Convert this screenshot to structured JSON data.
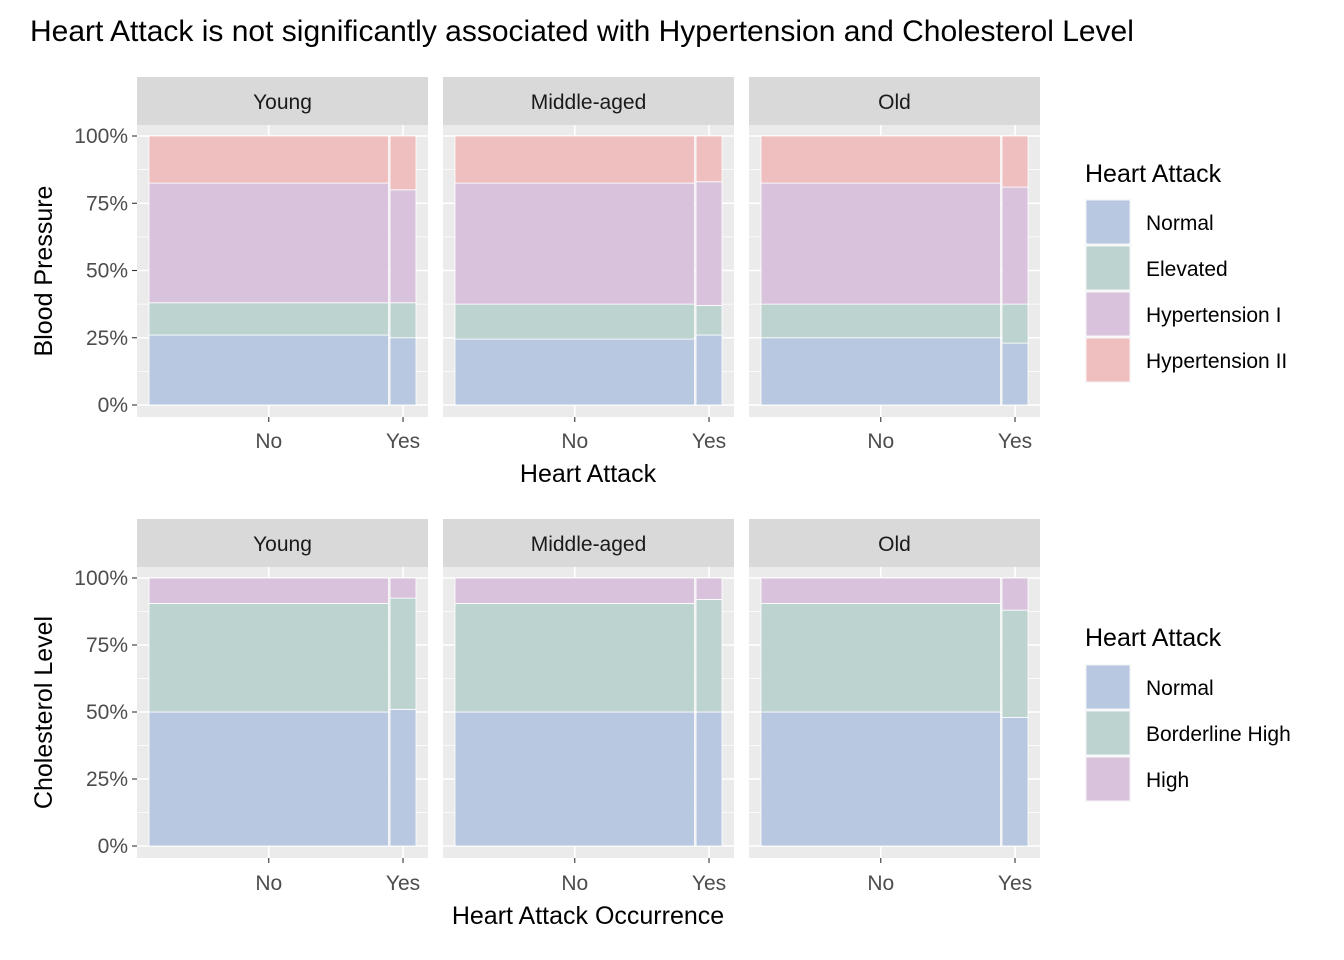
{
  "title": "Heart Attack is not significantly associated with Hypertension and Cholesterol Level",
  "chart_data": [
    {
      "type": "mosaic",
      "facets": [
        "Young",
        "Middle-aged",
        "Old"
      ],
      "x_categories": [
        "No",
        "Yes"
      ],
      "x_widths": [
        0.9,
        0.1
      ],
      "xlabel": "Heart Attack",
      "ylabel": "Blood Pressure",
      "y_ticks": [
        "0%",
        "25%",
        "50%",
        "75%",
        "100%"
      ],
      "ylim": [
        0,
        1
      ],
      "legend": {
        "title": "Heart Attack",
        "position": "right",
        "entries": [
          {
            "name": "Normal",
            "color": "#b7c8e0"
          },
          {
            "name": "Elevated",
            "color": "#bdd3d0"
          },
          {
            "name": "Hypertension I",
            "color": "#d9c3dc"
          },
          {
            "name": "Hypertension II",
            "color": "#efbfbf"
          }
        ]
      },
      "values": {
        "Young": {
          "No": [
            0.26,
            0.12,
            0.445,
            0.175
          ],
          "Yes": [
            0.25,
            0.13,
            0.42,
            0.2
          ]
        },
        "Middle-aged": {
          "No": [
            0.245,
            0.13,
            0.45,
            0.175
          ],
          "Yes": [
            0.26,
            0.11,
            0.46,
            0.17
          ]
        },
        "Old": {
          "No": [
            0.25,
            0.125,
            0.45,
            0.175
          ],
          "Yes": [
            0.23,
            0.145,
            0.435,
            0.19
          ]
        }
      }
    },
    {
      "type": "mosaic",
      "facets": [
        "Young",
        "Middle-aged",
        "Old"
      ],
      "x_categories": [
        "No",
        "Yes"
      ],
      "x_widths": [
        0.9,
        0.1
      ],
      "xlabel": "Heart Attack Occurrence",
      "ylabel": "Cholesterol Level",
      "y_ticks": [
        "0%",
        "25%",
        "50%",
        "75%",
        "100%"
      ],
      "ylim": [
        0,
        1
      ],
      "legend": {
        "title": "Heart Attack",
        "position": "right",
        "entries": [
          {
            "name": "Normal",
            "color": "#b7c8e0"
          },
          {
            "name": "Borderline High",
            "color": "#bdd3d0"
          },
          {
            "name": "High",
            "color": "#d9c3dc"
          }
        ]
      },
      "values": {
        "Young": {
          "No": [
            0.5,
            0.405,
            0.095
          ],
          "Yes": [
            0.51,
            0.415,
            0.075
          ]
        },
        "Middle-aged": {
          "No": [
            0.5,
            0.405,
            0.095
          ],
          "Yes": [
            0.5,
            0.42,
            0.08
          ]
        },
        "Old": {
          "No": [
            0.5,
            0.405,
            0.095
          ],
          "Yes": [
            0.48,
            0.4,
            0.12
          ]
        }
      }
    }
  ]
}
